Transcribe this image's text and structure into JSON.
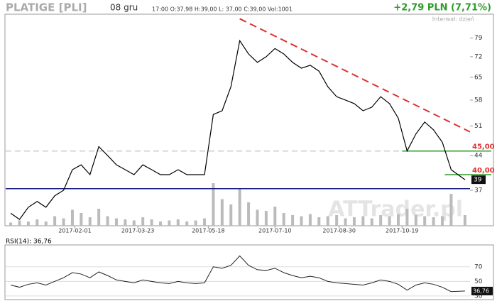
{
  "header": {
    "symbol": "PLATIGE [PLI]",
    "date": "08 gru",
    "ohlc": "17:00  O:37,98  H:39,00  L: 37,00  C:39,00  Vol:1001",
    "change": "+2,79 PLN (7,71%)",
    "interval": "Interwał: dzień",
    "watermark": "ATTrader.pl"
  },
  "chart_data": [
    {
      "type": "line",
      "log_scale": true,
      "x": [
        "2016-12-12",
        "2016-12-19",
        "2016-12-26",
        "2017-01-02",
        "2017-01-09",
        "2017-01-16",
        "2017-01-23",
        "2017-01-30",
        "2017-02-06",
        "2017-02-13",
        "2017-02-20",
        "2017-02-27",
        "2017-03-06",
        "2017-03-13",
        "2017-03-20",
        "2017-03-27",
        "2017-04-03",
        "2017-04-10",
        "2017-04-17",
        "2017-04-24",
        "2017-05-01",
        "2017-05-08",
        "2017-05-15",
        "2017-05-22",
        "2017-05-29",
        "2017-06-05",
        "2017-06-12",
        "2017-06-19",
        "2017-06-26",
        "2017-07-03",
        "2017-07-10",
        "2017-07-17",
        "2017-07-24",
        "2017-07-31",
        "2017-08-07",
        "2017-08-14",
        "2017-08-21",
        "2017-08-28",
        "2017-09-04",
        "2017-09-11",
        "2017-09-18",
        "2017-09-25",
        "2017-10-02",
        "2017-10-09",
        "2017-10-16",
        "2017-10-23",
        "2017-10-30",
        "2017-11-06",
        "2017-11-13",
        "2017-11-20",
        "2017-11-27",
        "2017-12-08"
      ],
      "series": [
        {
          "color": "#000000",
          "values": [
            33,
            32,
            34,
            35,
            34,
            36,
            37,
            41,
            42,
            40,
            46,
            44,
            42,
            41,
            40,
            42,
            41,
            40,
            40,
            41,
            40,
            40,
            40,
            54,
            55,
            62,
            78,
            73,
            70,
            72,
            75,
            73,
            70,
            68,
            69,
            67,
            62,
            59,
            58,
            57,
            55,
            56,
            59,
            57,
            53,
            45,
            49,
            52,
            50,
            47,
            41,
            39
          ]
        }
      ],
      "volume": {
        "color": "#bbbbbb",
        "values": [
          300,
          500,
          400,
          600,
          400,
          900,
          700,
          1500,
          1200,
          800,
          1600,
          900,
          700,
          600,
          500,
          800,
          600,
          400,
          500,
          600,
          400,
          500,
          700,
          4000,
          2500,
          2000,
          3500,
          2200,
          1500,
          1400,
          1800,
          1200,
          1000,
          900,
          1100,
          800,
          900,
          1000,
          700,
          800,
          900,
          700,
          1000,
          900,
          1100,
          1600,
          1000,
          900,
          800,
          900,
          3000,
          1001
        ]
      },
      "xlim": [
        "2016-12-08",
        "2017-12-12"
      ],
      "xticks": [
        "2017-02-01",
        "2017-03-23",
        "2017-05-18",
        "2017-07-10",
        "2017-08-30",
        "2017-10-19"
      ],
      "ylim": [
        31,
        89
      ],
      "yticks": [
        37,
        44,
        51,
        58,
        65,
        72,
        79
      ],
      "levels": [
        {
          "value": 45,
          "label": "45,00",
          "color": "#2a9d2a",
          "from": "2017-10-19"
        },
        {
          "value": 40,
          "label": "40,00",
          "color": "#2a9d2a",
          "from": "2017-11-22"
        }
      ],
      "support": {
        "value": 37.3,
        "color": "#1a237e"
      },
      "trend": {
        "x": [
          "2017-06-12",
          "2017-12-12"
        ],
        "values": [
          87,
          49.5
        ],
        "color": "#e03030"
      },
      "last": 39
    },
    {
      "type": "line",
      "label": "RSI(14): 36,76",
      "last_label": "36,76",
      "series": [
        {
          "color": "#222222",
          "values": [
            45,
            42,
            46,
            48,
            45,
            50,
            55,
            62,
            60,
            55,
            63,
            58,
            52,
            50,
            48,
            52,
            50,
            48,
            47,
            50,
            48,
            47,
            48,
            70,
            68,
            72,
            85,
            72,
            66,
            65,
            68,
            62,
            58,
            55,
            57,
            55,
            50,
            48,
            47,
            46,
            45,
            48,
            52,
            50,
            46,
            38,
            45,
            48,
            46,
            42,
            36,
            36.76
          ]
        }
      ],
      "ylim": [
        25,
        100
      ],
      "yticks": [
        30,
        50,
        70
      ]
    }
  ]
}
